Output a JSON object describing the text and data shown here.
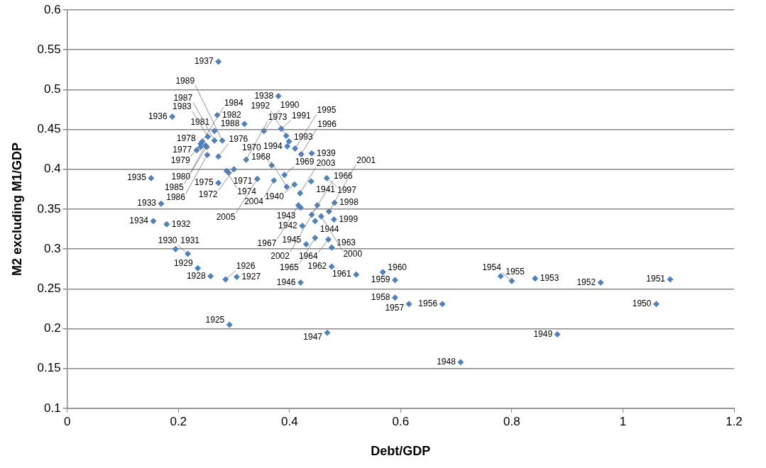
{
  "chart_data": {
    "type": "scatter",
    "xlabel": "Debt/GDP",
    "ylabel": "M2 excluding M1/GDP",
    "xlim": [
      0,
      1.2
    ],
    "xticks": [
      0,
      0.2,
      0.4,
      0.6,
      0.8,
      1,
      1.2
    ],
    "ylim": [
      0.1,
      0.6
    ],
    "yticks": [
      0.1,
      0.15,
      0.2,
      0.25,
      0.3,
      0.35,
      0.4,
      0.45,
      0.5,
      0.55,
      0.6
    ],
    "grid": "y",
    "marker": "diamond",
    "series": [
      {
        "color": "#4f81bd",
        "x": [
          0.292,
          0.285,
          0.305,
          0.258,
          0.235,
          0.217,
          0.195,
          0.179,
          0.169,
          0.155,
          0.151,
          0.189,
          0.272,
          0.38,
          0.44,
          0.409,
          0.439,
          0.423,
          0.42,
          0.446,
          0.43,
          0.42,
          0.468,
          0.708,
          0.882,
          1.06,
          1.085,
          0.96,
          0.842,
          0.8,
          0.78,
          0.675,
          0.615,
          0.59,
          0.59,
          0.568,
          0.52,
          0.476,
          0.476,
          0.47,
          0.446,
          0.44,
          0.416,
          0.395,
          0.391,
          0.368,
          0.29,
          0.3,
          0.322,
          0.287,
          0.272,
          0.272,
          0.233,
          0.24,
          0.24,
          0.251,
          0.265,
          0.27,
          0.253,
          0.243,
          0.249,
          0.252,
          0.265,
          0.319,
          0.279,
          0.354,
          0.385,
          0.394,
          0.399,
          0.396,
          0.41,
          0.421,
          0.467,
          0.481,
          0.48,
          0.457,
          0.471,
          0.45,
          0.419,
          0.372,
          0.342
        ],
        "values": [
          0.205,
          0.262,
          0.265,
          0.266,
          0.276,
          0.294,
          0.3,
          0.331,
          0.357,
          0.335,
          0.389,
          0.466,
          0.535,
          0.492,
          0.42,
          0.381,
          0.385,
          0.329,
          0.352,
          0.335,
          0.306,
          0.258,
          0.195,
          0.158,
          0.193,
          0.231,
          0.262,
          0.258,
          0.263,
          0.26,
          0.266,
          0.231,
          0.231,
          0.239,
          0.261,
          0.271,
          0.268,
          0.278,
          0.302,
          0.312,
          0.314,
          0.343,
          0.355,
          0.378,
          0.393,
          0.405,
          0.396,
          0.4,
          0.412,
          0.398,
          0.383,
          0.416,
          0.424,
          0.428,
          0.432,
          0.428,
          0.448,
          0.468,
          0.441,
          0.435,
          0.43,
          0.418,
          0.436,
          0.457,
          0.436,
          0.448,
          0.451,
          0.442,
          0.435,
          0.429,
          0.426,
          0.419,
          0.389,
          0.358,
          0.337,
          0.341,
          0.347,
          0.355,
          0.37,
          0.386,
          0.388
        ]
      }
    ],
    "annotations": [
      {
        "text": "1925",
        "x": 0.292,
        "y": 0.205
      },
      {
        "text": "1926",
        "x": 0.285,
        "y": 0.262
      },
      {
        "text": "1927",
        "x": 0.305,
        "y": 0.265
      },
      {
        "text": "1928",
        "x": 0.258,
        "y": 0.266
      },
      {
        "text": "1929",
        "x": 0.235,
        "y": 0.276
      },
      {
        "text": "1930",
        "x": 0.217,
        "y": 0.294
      },
      {
        "text": "1931",
        "x": 0.195,
        "y": 0.3
      },
      {
        "text": "1932",
        "x": 0.179,
        "y": 0.331
      },
      {
        "text": "1933",
        "x": 0.169,
        "y": 0.357
      },
      {
        "text": "1934",
        "x": 0.155,
        "y": 0.335
      },
      {
        "text": "1935",
        "x": 0.151,
        "y": 0.389
      },
      {
        "text": "1936",
        "x": 0.189,
        "y": 0.466
      },
      {
        "text": "1937",
        "x": 0.272,
        "y": 0.535
      },
      {
        "text": "1938",
        "x": 0.38,
        "y": 0.492
      },
      {
        "text": "1939",
        "x": 0.44,
        "y": 0.42
      },
      {
        "text": "1940",
        "x": 0.409,
        "y": 0.381
      },
      {
        "text": "1941",
        "x": 0.439,
        "y": 0.385
      },
      {
        "text": "1942",
        "x": 0.423,
        "y": 0.329
      },
      {
        "text": "1943",
        "x": 0.42,
        "y": 0.352
      },
      {
        "text": "1944",
        "x": 0.446,
        "y": 0.335
      },
      {
        "text": "1945",
        "x": 0.43,
        "y": 0.306
      },
      {
        "text": "1946",
        "x": 0.42,
        "y": 0.258
      },
      {
        "text": "1947",
        "x": 0.468,
        "y": 0.195
      },
      {
        "text": "1948",
        "x": 0.708,
        "y": 0.158
      },
      {
        "text": "1949",
        "x": 0.882,
        "y": 0.193
      },
      {
        "text": "1950",
        "x": 1.06,
        "y": 0.231
      },
      {
        "text": "1951",
        "x": 1.085,
        "y": 0.262
      },
      {
        "text": "1952",
        "x": 0.96,
        "y": 0.258
      },
      {
        "text": "1953",
        "x": 0.842,
        "y": 0.263
      },
      {
        "text": "1954",
        "x": 0.8,
        "y": 0.26
      },
      {
        "text": "1955",
        "x": 0.78,
        "y": 0.266
      },
      {
        "text": "1956",
        "x": 0.675,
        "y": 0.231
      },
      {
        "text": "1957",
        "x": 0.615,
        "y": 0.231
      },
      {
        "text": "1958",
        "x": 0.59,
        "y": 0.239
      },
      {
        "text": "1959",
        "x": 0.59,
        "y": 0.261
      },
      {
        "text": "1960",
        "x": 0.568,
        "y": 0.271
      },
      {
        "text": "1961",
        "x": 0.52,
        "y": 0.268
      },
      {
        "text": "1962",
        "x": 0.476,
        "y": 0.278
      },
      {
        "text": "1963",
        "x": 0.476,
        "y": 0.302
      },
      {
        "text": "1964",
        "x": 0.47,
        "y": 0.312
      },
      {
        "text": "1965",
        "x": 0.446,
        "y": 0.314
      },
      {
        "text": "1966",
        "x": 0.44,
        "y": 0.343
      },
      {
        "text": "1967",
        "x": 0.416,
        "y": 0.355
      },
      {
        "text": "1968",
        "x": 0.395,
        "y": 0.378
      },
      {
        "text": "1969",
        "x": 0.391,
        "y": 0.393
      },
      {
        "text": "1970",
        "x": 0.368,
        "y": 0.405
      },
      {
        "text": "1971",
        "x": 0.29,
        "y": 0.396
      },
      {
        "text": "1972",
        "x": 0.3,
        "y": 0.4
      },
      {
        "text": "1973",
        "x": 0.322,
        "y": 0.412
      },
      {
        "text": "1974",
        "x": 0.287,
        "y": 0.398
      },
      {
        "text": "1975",
        "x": 0.272,
        "y": 0.383
      },
      {
        "text": "1976",
        "x": 0.272,
        "y": 0.416
      },
      {
        "text": "1977",
        "x": 0.233,
        "y": 0.424
      },
      {
        "text": "1978",
        "x": 0.24,
        "y": 0.428
      },
      {
        "text": "1979",
        "x": 0.24,
        "y": 0.432
      },
      {
        "text": "1980",
        "x": 0.251,
        "y": 0.428
      },
      {
        "text": "1981",
        "x": 0.265,
        "y": 0.448
      },
      {
        "text": "1982",
        "x": 0.27,
        "y": 0.468
      },
      {
        "text": "1983",
        "x": 0.253,
        "y": 0.441
      },
      {
        "text": "1984",
        "x": 0.243,
        "y": 0.435
      },
      {
        "text": "1985",
        "x": 0.249,
        "y": 0.43
      },
      {
        "text": "1986",
        "x": 0.252,
        "y": 0.418
      },
      {
        "text": "1987",
        "x": 0.265,
        "y": 0.436
      },
      {
        "text": "1988",
        "x": 0.319,
        "y": 0.457
      },
      {
        "text": "1989",
        "x": 0.279,
        "y": 0.436
      },
      {
        "text": "1990",
        "x": 0.354,
        "y": 0.448
      },
      {
        "text": "1991",
        "x": 0.385,
        "y": 0.451
      },
      {
        "text": "1992",
        "x": 0.394,
        "y": 0.442
      },
      {
        "text": "1993",
        "x": 0.399,
        "y": 0.435
      },
      {
        "text": "1994",
        "x": 0.396,
        "y": 0.429
      },
      {
        "text": "1995",
        "x": 0.41,
        "y": 0.426
      },
      {
        "text": "1996",
        "x": 0.421,
        "y": 0.419
      },
      {
        "text": "1997",
        "x": 0.467,
        "y": 0.389
      },
      {
        "text": "1998",
        "x": 0.481,
        "y": 0.358
      },
      {
        "text": "1999",
        "x": 0.48,
        "y": 0.337
      },
      {
        "text": "2000",
        "x": 0.457,
        "y": 0.341
      },
      {
        "text": "2001",
        "x": 0.471,
        "y": 0.347
      },
      {
        "text": "2002",
        "x": 0.45,
        "y": 0.355
      },
      {
        "text": "2003",
        "x": 0.419,
        "y": 0.37
      },
      {
        "text": "2004",
        "x": 0.372,
        "y": 0.386
      },
      {
        "text": "2005",
        "x": 0.342,
        "y": 0.388
      }
    ]
  }
}
